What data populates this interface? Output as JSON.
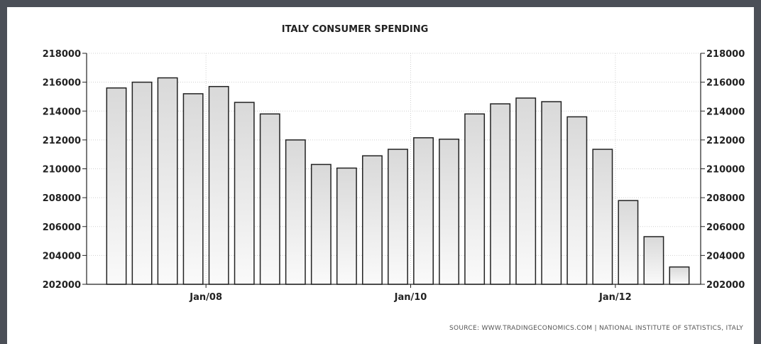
{
  "chart_data": {
    "type": "bar",
    "title": "ITALY CONSUMER SPENDING",
    "source": "SOURCE: WWW.TRADINGECONOMICS.COM  |  NATIONAL INSTITUTE OF STATISTICS, ITALY",
    "xlabel": "",
    "ylabel": "",
    "ylim": [
      202000,
      218000
    ],
    "yticks": [
      218000,
      216000,
      214000,
      212000,
      210000,
      208000,
      206000,
      204000,
      202000
    ],
    "x_tick_labels": [
      "Jan/08",
      "Jan/10",
      "Jan/12"
    ],
    "x_tick_after_bar_index": [
      3,
      11,
      19
    ],
    "values": [
      215600,
      216000,
      216300,
      215200,
      215700,
      214600,
      213800,
      212000,
      210300,
      210050,
      210900,
      211350,
      212150,
      212050,
      213800,
      214500,
      214900,
      214650,
      213600,
      211350,
      207800,
      205300,
      203200
    ],
    "grid": true,
    "right_axis": true,
    "bar_color": "#e8e8e8",
    "bar_edge": "#222222"
  }
}
